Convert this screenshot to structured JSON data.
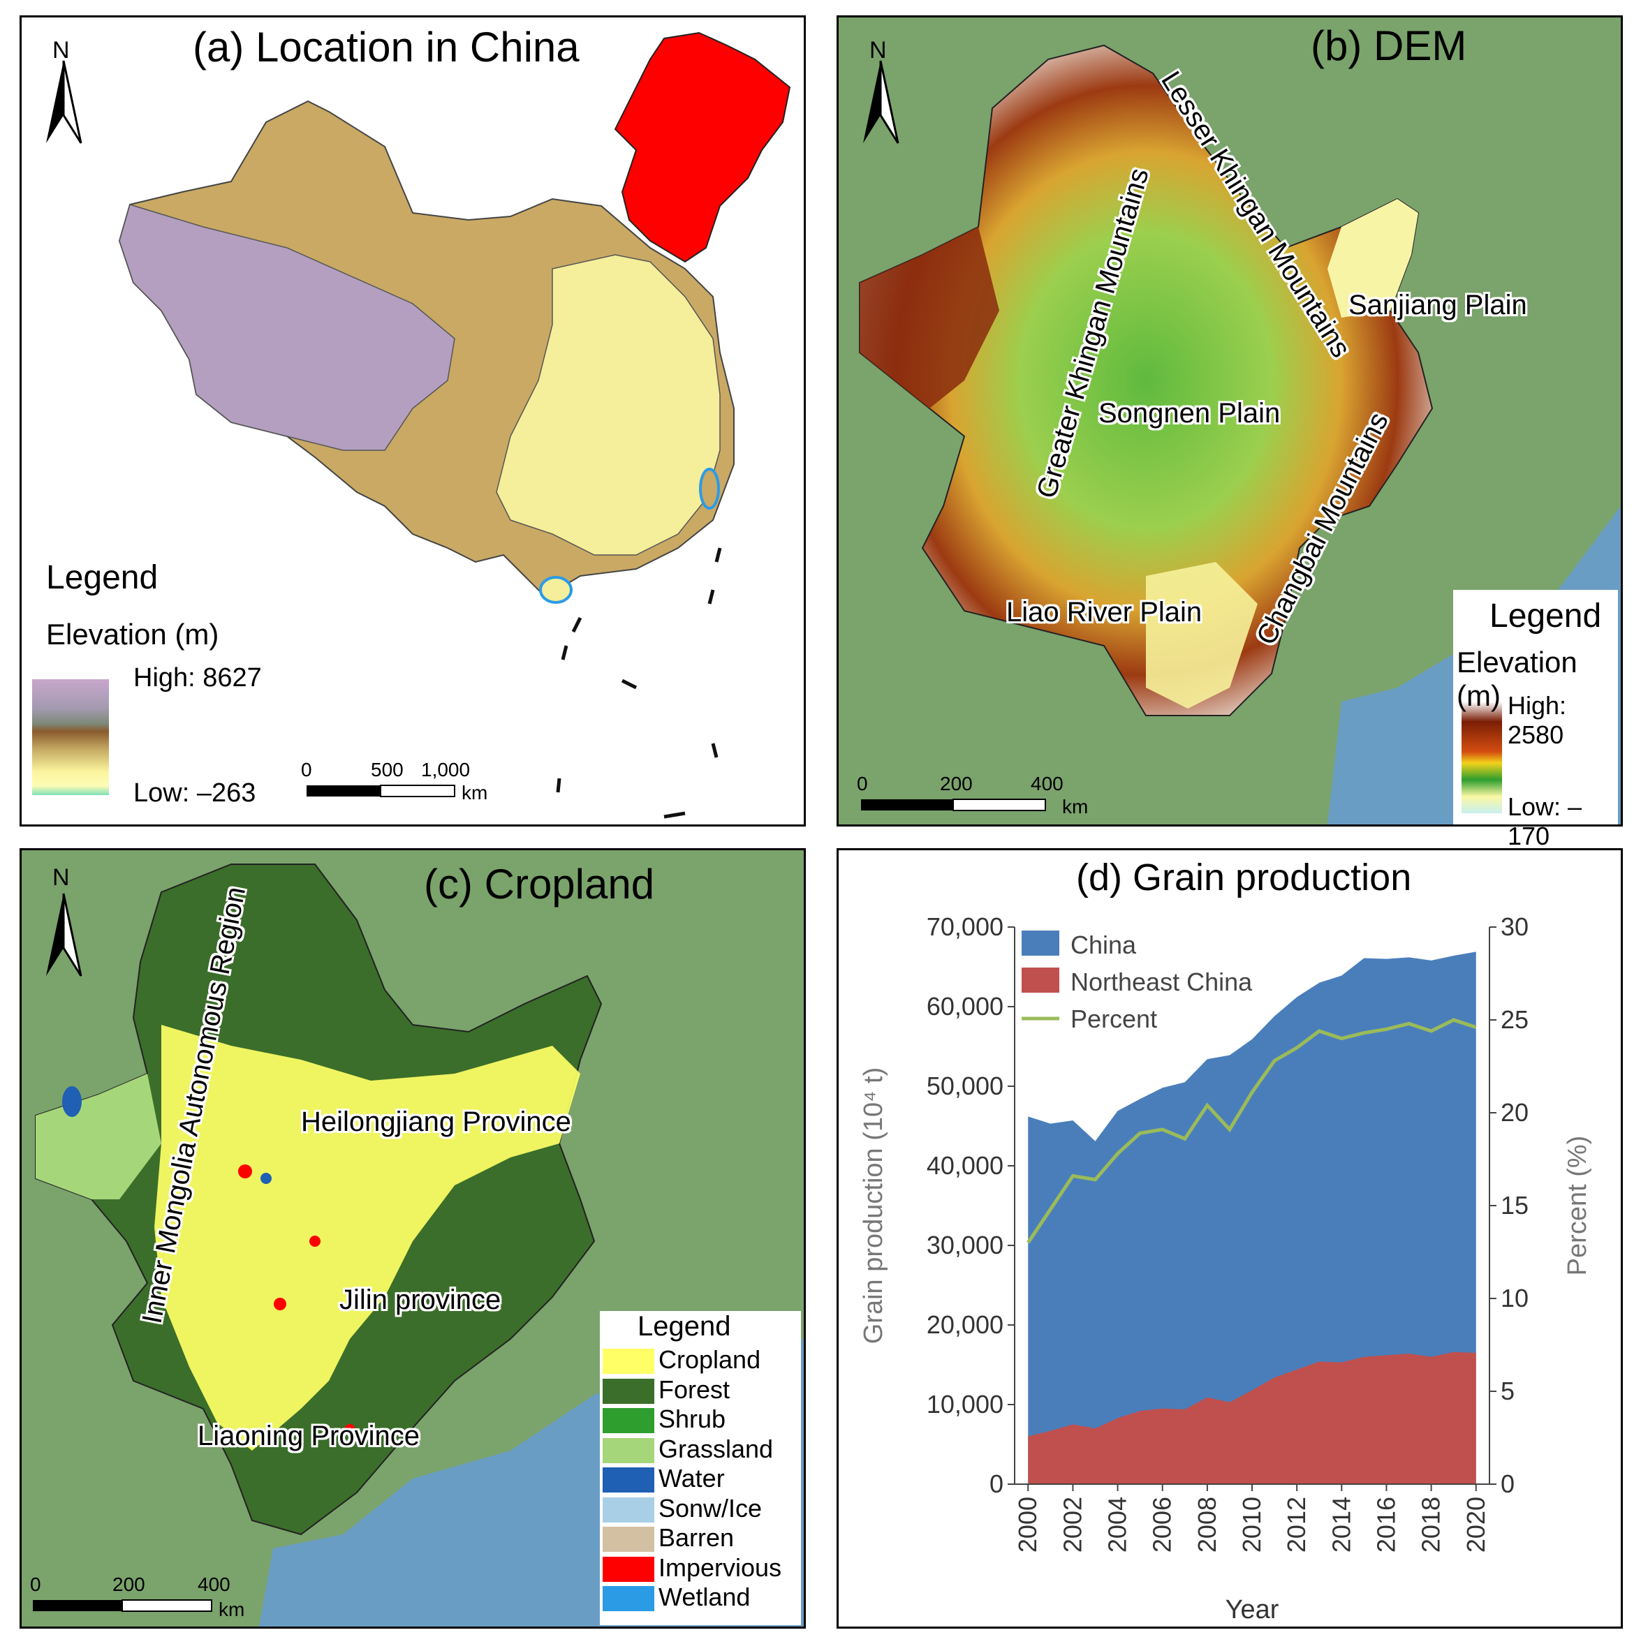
{
  "panel_a": {
    "title": "(a) Location in China",
    "north": "N",
    "legend_title": "Legend",
    "legend_subtitle": "Elevation (m)",
    "high_label": "High: 8627",
    "low_label": "Low: –263",
    "scale_ticks": [
      "0",
      "500",
      "1,000"
    ],
    "scale_unit": "km",
    "colors": {
      "highlight": "#ff0000",
      "plateau": "#b49fc0",
      "lowland": "#f5ee9a",
      "midland": "#c9a964"
    }
  },
  "panel_b": {
    "title": "(b) DEM",
    "north": "N",
    "labels": {
      "greater_khingan": "Greater Khingan Mountains",
      "lesser_khingan": "Lesser Khingan Mountains",
      "sanjiang": "Sanjiang Plain",
      "songnen": "Songnen Plain",
      "changbai": "Changbai Mountains",
      "liao": "Liao River Plain"
    },
    "legend_title": "Legend",
    "legend_subtitle": "Elevation (m)",
    "high_label": "High: 2580",
    "low_label": "Low: –170",
    "scale_ticks": [
      "0",
      "200",
      "400"
    ],
    "scale_unit": "km"
  },
  "panel_c": {
    "title": "(c) Cropland",
    "north": "N",
    "labels": {
      "inner_mongolia": "Inner Mongolia Autonomous Region",
      "heilongjiang": "Heilongjiang Province",
      "jilin": "Jilin province",
      "liaoning": "Liaoning Province"
    },
    "legend_title": "Legend",
    "legend_items": [
      {
        "label": "Cropland",
        "color": "#ffff66"
      },
      {
        "label": "Forest",
        "color": "#3b6e2a"
      },
      {
        "label": "Shrub",
        "color": "#2e9e2e"
      },
      {
        "label": "Grassland",
        "color": "#a6d67a"
      },
      {
        "label": "Water",
        "color": "#1f5fb4"
      },
      {
        "label": "Sonw/Ice",
        "color": "#a9cfe6"
      },
      {
        "label": "Barren",
        "color": "#d3bfa2"
      },
      {
        "label": "Impervious",
        "color": "#ff0000"
      },
      {
        "label": "Wetland",
        "color": "#2b9be6"
      }
    ],
    "scale_ticks": [
      "0",
      "200",
      "400"
    ],
    "scale_unit": "km"
  },
  "panel_d": {
    "title": "(d) Grain production",
    "chart_data": {
      "type": "area",
      "x": [
        2000,
        2001,
        2002,
        2003,
        2004,
        2005,
        2006,
        2007,
        2008,
        2009,
        2010,
        2011,
        2012,
        2013,
        2014,
        2015,
        2016,
        2017,
        2018,
        2019,
        2020
      ],
      "xticks": [
        "2000",
        "2002",
        "2004",
        "2006",
        "2008",
        "2010",
        "2012",
        "2014",
        "2016",
        "2018",
        "2020"
      ],
      "xlabel": "Year",
      "ylabel": "Grain production (10⁴ t)",
      "ylabel_right": "Percent (%)",
      "ylim": [
        0,
        70000
      ],
      "ylim_right": [
        0,
        30
      ],
      "yticks": [
        "0",
        "10,000",
        "20,000",
        "30,000",
        "40,000",
        "50,000",
        "60,000",
        "70,000"
      ],
      "yticks_right": [
        "0",
        "5",
        "10",
        "15",
        "20",
        "25",
        "30"
      ],
      "series": [
        {
          "name": "China",
          "color": "#4a7ebb",
          "axis": "left",
          "values": [
            46200,
            45300,
            45700,
            43100,
            46900,
            48400,
            49800,
            50500,
            53400,
            53900,
            55900,
            58800,
            61200,
            63000,
            63900,
            66100,
            66000,
            66200,
            65800,
            66400,
            66900
          ]
        },
        {
          "name": "Northeast China",
          "color": "#c0504d",
          "axis": "left",
          "values": [
            6000,
            6700,
            7500,
            7000,
            8300,
            9200,
            9500,
            9400,
            10900,
            10300,
            11800,
            13400,
            14400,
            15400,
            15300,
            16000,
            16200,
            16400,
            16000,
            16600,
            16500
          ]
        },
        {
          "name": "Percent",
          "color": "#9bbb59",
          "axis": "right",
          "values": [
            13.0,
            14.8,
            16.6,
            16.4,
            17.8,
            18.9,
            19.1,
            18.6,
            20.4,
            19.1,
            21.1,
            22.8,
            23.5,
            24.4,
            24.0,
            24.3,
            24.5,
            24.8,
            24.4,
            25.0,
            24.6
          ]
        }
      ]
    }
  }
}
